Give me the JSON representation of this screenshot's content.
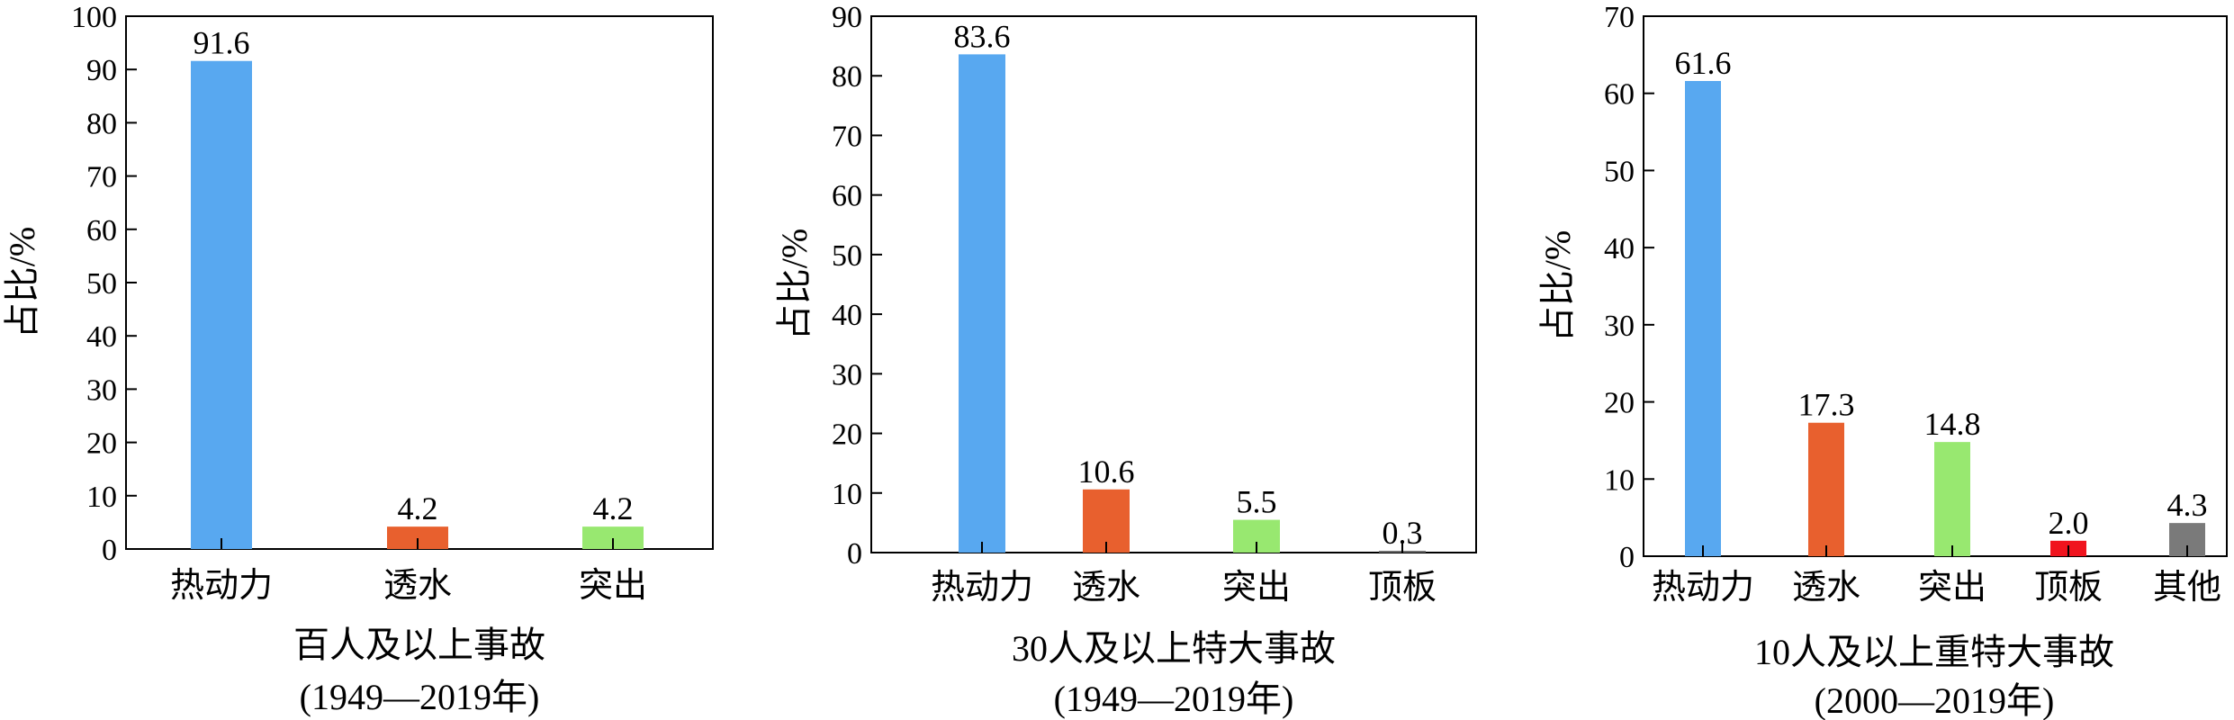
{
  "chart_data": [
    {
      "type": "bar",
      "ylabel": "占比/%",
      "ylim": [
        0,
        100
      ],
      "yticks": [
        "0",
        "10",
        "20",
        "30",
        "40",
        "50",
        "60",
        "70",
        "80",
        "90",
        "100"
      ],
      "categories": [
        "热动力",
        "透水",
        "突出"
      ],
      "values": [
        91.6,
        4.2,
        4.2
      ],
      "value_labels": [
        "91.6",
        "4.2",
        "4.2"
      ],
      "colors": [
        "#58a8f0",
        "#e8602e",
        "#98e870"
      ],
      "caption_line1": "百人及以上事故",
      "caption_line2": "(1949—2019年)"
    },
    {
      "type": "bar",
      "ylabel": "占比/%",
      "ylim": [
        0,
        90
      ],
      "yticks": [
        "0",
        "10",
        "20",
        "30",
        "40",
        "50",
        "60",
        "70",
        "80",
        "90"
      ],
      "categories": [
        "热动力",
        "透水",
        "突出",
        "顶板"
      ],
      "values": [
        83.6,
        10.6,
        5.5,
        0.3
      ],
      "value_labels": [
        "83.6",
        "10.6",
        "5.5",
        "0.3"
      ],
      "colors": [
        "#58a8f0",
        "#e8602e",
        "#98e870",
        "#6e6e6e"
      ],
      "caption_line1": "30人及以上特大事故",
      "caption_line2": "(1949—2019年)"
    },
    {
      "type": "bar",
      "ylabel": "占比/%",
      "ylim": [
        0,
        70
      ],
      "yticks": [
        "0",
        "10",
        "20",
        "30",
        "40",
        "50",
        "60",
        "70"
      ],
      "categories": [
        "热动力",
        "透水",
        "突出",
        "顶板",
        "其他"
      ],
      "values": [
        61.6,
        17.3,
        14.8,
        2.0,
        4.3
      ],
      "value_labels": [
        "61.6",
        "17.3",
        "14.8",
        "2.0",
        "4.3"
      ],
      "colors": [
        "#58a8f0",
        "#e8602e",
        "#98e870",
        "#f0141e",
        "#7a7a7a"
      ],
      "caption_line1": "10人及以上重特大事故",
      "caption_line2": "(2000—2019年)"
    }
  ]
}
